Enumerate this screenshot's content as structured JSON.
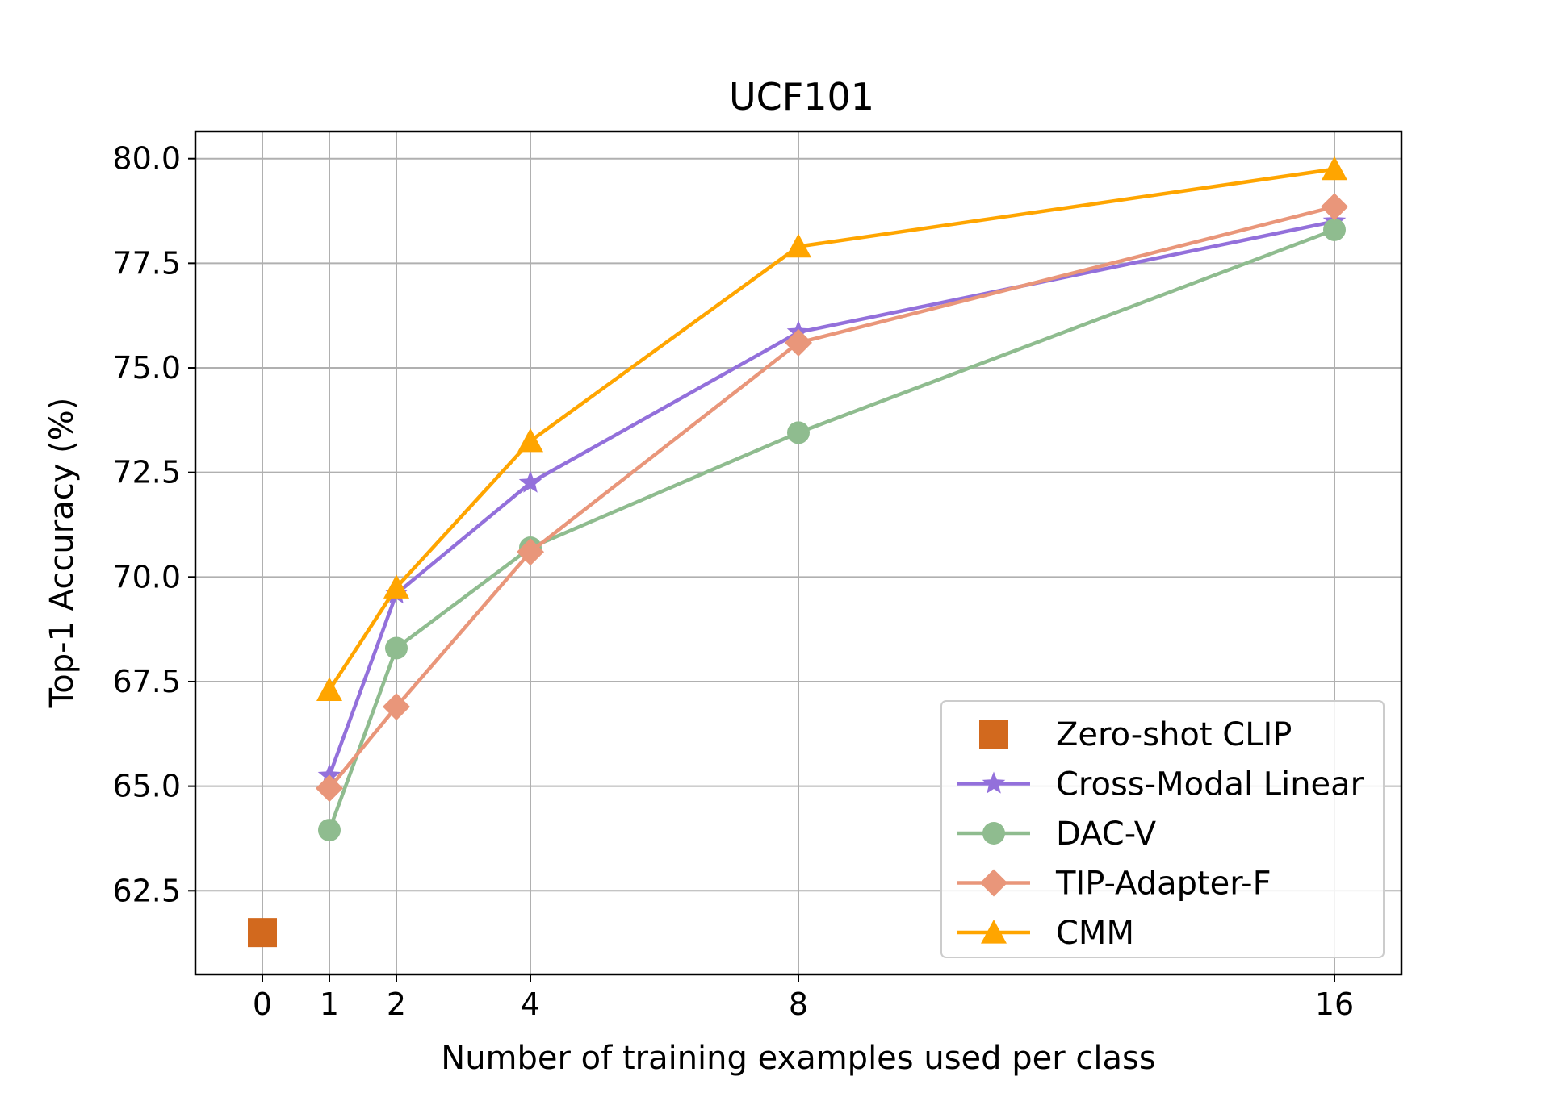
{
  "chart_data": {
    "type": "line",
    "title": "UCF101",
    "xlabel": "Number of training examples used per class",
    "ylabel": "Top-1 Accuracy (%)",
    "xlim": [
      -1,
      17
    ],
    "ylim": [
      60.5,
      80.65
    ],
    "x_ticks": [
      0,
      1,
      2,
      4,
      8,
      16
    ],
    "y_ticks": [
      62.5,
      65.0,
      67.5,
      70.0,
      72.5,
      75.0,
      77.5,
      80.0
    ],
    "grid": true,
    "legend_position": "lower-right",
    "series": [
      {
        "name": "Zero-shot CLIP",
        "marker": "square",
        "line": false,
        "color": "#d2691e",
        "x": [
          0
        ],
        "y": [
          61.5
        ]
      },
      {
        "name": "Cross-Modal Linear",
        "marker": "star",
        "line": true,
        "color": "#9370db",
        "x": [
          1,
          2,
          4,
          8,
          16
        ],
        "y": [
          65.25,
          69.6,
          72.25,
          75.85,
          78.5
        ]
      },
      {
        "name": "DAC-V",
        "marker": "circle",
        "line": true,
        "color": "#8fbc8f",
        "x": [
          1,
          2,
          4,
          8,
          16
        ],
        "y": [
          63.95,
          68.3,
          70.7,
          73.45,
          78.3
        ]
      },
      {
        "name": "TIP-Adapter-F",
        "marker": "diamond",
        "line": true,
        "color": "#e9967a",
        "x": [
          1,
          2,
          4,
          8,
          16
        ],
        "y": [
          64.95,
          66.9,
          70.6,
          75.6,
          78.85
        ]
      },
      {
        "name": "CMM",
        "marker": "triangle",
        "line": true,
        "color": "#ffa500",
        "x": [
          1,
          2,
          4,
          8,
          16
        ],
        "y": [
          67.3,
          69.75,
          73.25,
          77.9,
          79.75
        ]
      }
    ]
  }
}
